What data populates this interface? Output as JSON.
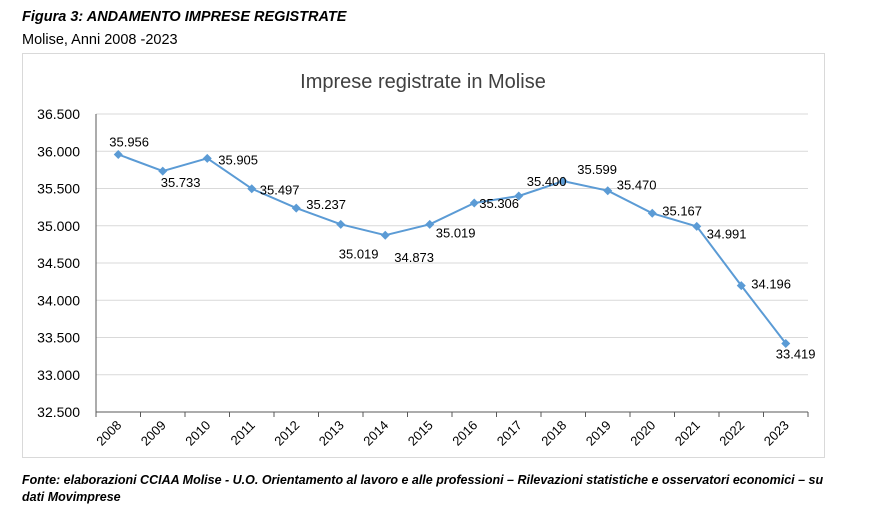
{
  "figure": {
    "title": "Figura 3: ANDAMENTO IMPRESE REGISTRATE",
    "subtitle": "Molise, Anni 2008 -2023",
    "source": "Fonte: elaborazioni CCIAA Molise - U.O. Orientamento al lavoro e alle professioni – Rilevazioni statistiche e osservatori economici – su dati Movimprese"
  },
  "chart_data": {
    "type": "line",
    "title": "Imprese registrate in Molise",
    "xlabel": "",
    "ylabel": "",
    "categories": [
      "2008",
      "2009",
      "2010",
      "2011",
      "2012",
      "2013",
      "2014",
      "2015",
      "2016",
      "2017",
      "2018",
      "2019",
      "2020",
      "2021",
      "2022",
      "2023"
    ],
    "series": [
      {
        "values": [
          35956,
          35733,
          35905,
          35497,
          35237,
          35019,
          34873,
          35019,
          35306,
          35400,
          35599,
          35470,
          35167,
          34991,
          34196,
          33419
        ],
        "labels": [
          "35.956",
          "35.733",
          "35.905",
          "35.497",
          "35.237",
          "35.019",
          "34.873",
          "35.019",
          "35.306",
          "35.400",
          "35.599",
          "35.470",
          "35.167",
          "34.991",
          "34.196",
          "33.419"
        ]
      }
    ],
    "ylim": [
      32500,
      36500
    ],
    "yticks": [
      32500,
      33000,
      33500,
      34000,
      34500,
      35000,
      35500,
      36000,
      36500
    ],
    "ytick_labels": [
      "32.500",
      "33.000",
      "33.500",
      "34.000",
      "34.500",
      "35.000",
      "35.500",
      "36.000",
      "36.500"
    ],
    "grid": true,
    "line_color": "#5b9bd5",
    "grid_color": "#d9d9d9",
    "axis_color": "#595959"
  }
}
